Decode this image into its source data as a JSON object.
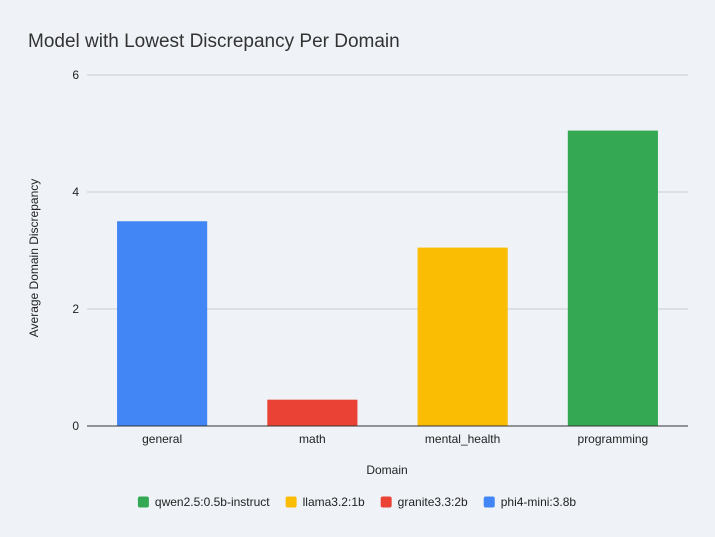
{
  "chart_data": {
    "type": "bar",
    "title": "Model with Lowest Discrepancy Per Domain",
    "xlabel": "Domain",
    "ylabel": "Average Domain Discrepancy",
    "categories": [
      "general",
      "math",
      "mental_health",
      "programming"
    ],
    "values": [
      3.5,
      0.45,
      3.05,
      5.05
    ],
    "bar_series": [
      "phi4-mini:3.8b",
      "granite3.3:2b",
      "llama3.2:1b",
      "qwen2.5:0.5b-instruct"
    ],
    "ylim": [
      0,
      6
    ],
    "yticks": [
      0,
      2,
      4,
      6
    ],
    "grid": true,
    "legend_position": "bottom",
    "legend": [
      {
        "name": "qwen2.5:0.5b-instruct",
        "color": "#34a853"
      },
      {
        "name": "llama3.2:1b",
        "color": "#fbbc04"
      },
      {
        "name": "granite3.3:2b",
        "color": "#ea4335"
      },
      {
        "name": "phi4-mini:3.8b",
        "color": "#4285f4"
      }
    ]
  }
}
